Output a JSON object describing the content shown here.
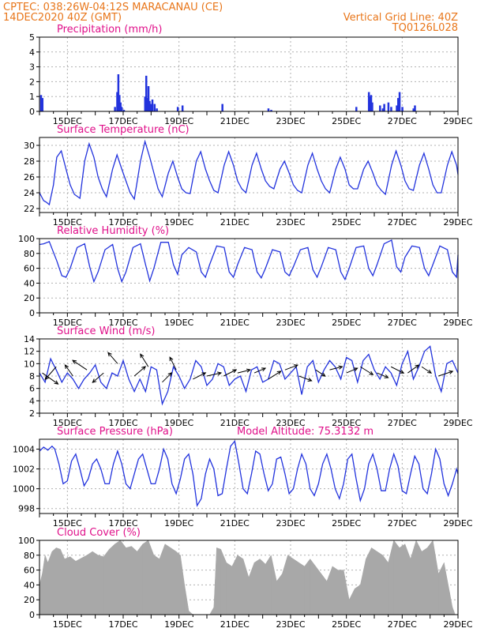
{
  "header": {
    "line1": "CPTEC:   038:26W-04:12S   MARACANAU (CE)",
    "line2": "14DEC2020 40Z (GMT)",
    "grid_note": "Vertical Grid Line: 40Z",
    "code": "TQ0126L028"
  },
  "colors": {
    "header": "#e8761a",
    "title": "#e0108a",
    "series": "#2233dd",
    "cloud": "#a8a8a8",
    "grid": "#b0b0b0"
  },
  "chart_data": [
    {
      "id": "precip",
      "type": "bar",
      "title": "Precipitation (mm/h)",
      "ylim": [
        0,
        5
      ],
      "yticks": [
        0,
        1,
        2,
        3,
        4,
        5
      ],
      "xlim": [
        14.0,
        29.0
      ],
      "x_tick_positions": [
        15,
        17,
        19,
        21,
        23,
        25,
        27,
        29
      ],
      "x_tick_labels": [
        "15DEC",
        "17DEC",
        "19DEC",
        "21DEC",
        "23DEC",
        "25DEC",
        "27DEC",
        "29DEC"
      ],
      "grid": true,
      "x": [
        14.05,
        14.1,
        16.7,
        16.78,
        16.82,
        16.86,
        16.9,
        16.94,
        17.02,
        17.78,
        17.82,
        17.86,
        17.9,
        17.94,
        17.98,
        18.04,
        18.12,
        18.2,
        18.95,
        19.12,
        20.55,
        22.2,
        22.3,
        25.35,
        25.8,
        25.85,
        25.88,
        25.92,
        26.2,
        26.3,
        26.35,
        26.5,
        26.6,
        26.8,
        26.85,
        26.9,
        27.0,
        27.4,
        27.45
      ],
      "values": [
        1.1,
        0.9,
        0.3,
        1.3,
        2.5,
        1.1,
        0.6,
        0.3,
        0.1,
        1.0,
        2.4,
        0.9,
        1.7,
        0.7,
        0.5,
        0.8,
        0.5,
        0.2,
        0.3,
        0.4,
        0.5,
        0.2,
        0.1,
        0.3,
        1.3,
        1.0,
        1.1,
        0.6,
        0.4,
        0.2,
        0.5,
        0.6,
        0.3,
        0.4,
        0.9,
        1.3,
        0.3,
        0.2,
        0.4
      ]
    },
    {
      "id": "temp",
      "type": "line",
      "title": "Surface Temperature (nC)",
      "ylim": [
        21.5,
        31
      ],
      "yticks": [
        22,
        24,
        26,
        28,
        30
      ],
      "xlim": [
        14.0,
        29.0
      ],
      "x_tick_positions": [
        15,
        17,
        19,
        21,
        23,
        25,
        27,
        29
      ],
      "x_tick_labels": [
        "15DEC",
        "17DEC",
        "19DEC",
        "21DEC",
        "23DEC",
        "25DEC",
        "27DEC",
        "29DEC"
      ],
      "grid": true,
      "x": [
        14.0,
        14.15,
        14.25,
        14.35,
        14.5,
        14.62,
        14.78,
        14.95,
        15.1,
        15.25,
        15.45,
        15.62,
        15.78,
        15.95,
        16.1,
        16.25,
        16.4,
        16.62,
        16.78,
        16.95,
        17.1,
        17.25,
        17.4,
        17.62,
        17.78,
        17.95,
        18.1,
        18.25,
        18.4,
        18.62,
        18.78,
        18.95,
        19.1,
        19.25,
        19.4,
        19.62,
        19.78,
        19.95,
        20.1,
        20.25,
        20.4,
        20.62,
        20.78,
        20.95,
        21.1,
        21.25,
        21.4,
        21.62,
        21.78,
        21.95,
        22.1,
        22.25,
        22.4,
        22.62,
        22.78,
        22.95,
        23.1,
        23.25,
        23.4,
        23.62,
        23.78,
        23.95,
        24.1,
        24.25,
        24.4,
        24.62,
        24.78,
        24.95,
        25.1,
        25.25,
        25.4,
        25.62,
        25.78,
        25.95,
        26.1,
        26.25,
        26.4,
        26.62,
        26.78,
        26.95,
        27.1,
        27.25,
        27.4,
        27.62,
        27.78,
        27.95,
        28.1,
        28.25,
        28.4,
        28.62,
        28.78,
        28.95,
        29.0
      ],
      "values": [
        24.0,
        23.0,
        22.8,
        22.5,
        25.0,
        28.5,
        29.3,
        27.0,
        25.0,
        23.8,
        23.3,
        28.0,
        30.2,
        28.5,
        26.0,
        24.5,
        23.5,
        27.0,
        28.8,
        27.0,
        25.5,
        24.0,
        23.2,
        28.0,
        30.5,
        28.5,
        26.5,
        24.5,
        23.5,
        26.5,
        28.0,
        26.0,
        24.5,
        24.0,
        23.9,
        28.0,
        29.2,
        27.0,
        25.5,
        24.3,
        24.0,
        27.5,
        29.2,
        27.5,
        25.5,
        24.5,
        24.0,
        27.5,
        29.0,
        27.0,
        25.5,
        24.8,
        24.5,
        27.0,
        28.0,
        26.5,
        25.0,
        24.3,
        24.0,
        27.5,
        29.0,
        27.0,
        25.5,
        24.5,
        24.0,
        27.0,
        28.5,
        27.0,
        25.0,
        24.5,
        24.5,
        27.0,
        28.0,
        26.5,
        25.0,
        24.3,
        23.8,
        27.5,
        29.3,
        27.5,
        25.5,
        24.5,
        24.3,
        27.5,
        29.0,
        27.0,
        25.0,
        24.0,
        24.0,
        27.5,
        29.2,
        27.5,
        26.3
      ]
    },
    {
      "id": "rh",
      "type": "line",
      "title": "Relative Humidity (%)",
      "ylim": [
        0,
        100
      ],
      "yticks": [
        0,
        20,
        40,
        60,
        80,
        100
      ],
      "xlim": [
        14.0,
        29.0
      ],
      "x_tick_positions": [
        15,
        17,
        19,
        21,
        23,
        25,
        27,
        29
      ],
      "x_tick_labels": [
        "15DEC",
        "17DEC",
        "19DEC",
        "21DEC",
        "23DEC",
        "25DEC",
        "27DEC",
        "29DEC"
      ],
      "grid": true,
      "x": [
        14.0,
        14.15,
        14.35,
        14.62,
        14.8,
        14.95,
        15.1,
        15.35,
        15.62,
        15.8,
        15.95,
        16.1,
        16.35,
        16.62,
        16.8,
        16.95,
        17.1,
        17.35,
        17.62,
        17.8,
        17.95,
        18.1,
        18.35,
        18.62,
        18.8,
        18.95,
        19.1,
        19.35,
        19.62,
        19.8,
        19.95,
        20.1,
        20.35,
        20.62,
        20.8,
        20.95,
        21.1,
        21.35,
        21.62,
        21.8,
        21.95,
        22.1,
        22.35,
        22.62,
        22.8,
        22.95,
        23.1,
        23.35,
        23.62,
        23.8,
        23.95,
        24.1,
        24.35,
        24.62,
        24.8,
        24.95,
        25.1,
        25.35,
        25.62,
        25.8,
        25.95,
        26.1,
        26.35,
        26.62,
        26.8,
        26.95,
        27.1,
        27.35,
        27.62,
        27.8,
        27.95,
        28.1,
        28.35,
        28.62,
        28.8,
        28.95,
        29.0
      ],
      "values": [
        92,
        93,
        96,
        70,
        50,
        48,
        60,
        88,
        93,
        62,
        42,
        55,
        85,
        92,
        60,
        42,
        55,
        88,
        93,
        65,
        43,
        60,
        95,
        95,
        65,
        52,
        78,
        88,
        82,
        55,
        48,
        65,
        90,
        88,
        55,
        48,
        65,
        88,
        85,
        55,
        47,
        60,
        85,
        82,
        55,
        50,
        62,
        85,
        88,
        58,
        48,
        62,
        88,
        85,
        55,
        45,
        60,
        88,
        90,
        60,
        50,
        65,
        93,
        98,
        62,
        55,
        75,
        90,
        88,
        60,
        50,
        65,
        90,
        85,
        55,
        48,
        78
      ]
    },
    {
      "id": "wind",
      "type": "line",
      "title": "Surface Wind (m/s)",
      "ylim": [
        2,
        14
      ],
      "yticks": [
        2,
        4,
        6,
        8,
        10,
        12,
        14
      ],
      "xlim": [
        14.0,
        29.0
      ],
      "x_tick_positions": [
        15,
        17,
        19,
        21,
        23,
        25,
        27,
        29
      ],
      "x_tick_labels": [
        "15DEC",
        "17DEC",
        "19DEC",
        "21DEC",
        "23DEC",
        "25DEC",
        "27DEC",
        "29DEC"
      ],
      "grid": true,
      "x": [
        14.0,
        14.2,
        14.4,
        14.6,
        14.8,
        15.0,
        15.2,
        15.4,
        15.6,
        15.8,
        16.0,
        16.2,
        16.4,
        16.6,
        16.8,
        17.0,
        17.2,
        17.4,
        17.6,
        17.8,
        18.0,
        18.2,
        18.4,
        18.6,
        18.8,
        19.0,
        19.2,
        19.4,
        19.6,
        19.8,
        20.0,
        20.2,
        20.4,
        20.6,
        20.8,
        21.0,
        21.2,
        21.4,
        21.6,
        21.8,
        22.0,
        22.2,
        22.4,
        22.6,
        22.8,
        23.0,
        23.2,
        23.4,
        23.6,
        23.8,
        24.0,
        24.2,
        24.4,
        24.6,
        24.8,
        25.0,
        25.2,
        25.4,
        25.6,
        25.8,
        26.0,
        26.2,
        26.4,
        26.6,
        26.8,
        27.0,
        27.2,
        27.4,
        27.6,
        27.8,
        28.0,
        28.2,
        28.4,
        28.6,
        28.8,
        29.0
      ],
      "values": [
        8.5,
        7.0,
        10.8,
        9.0,
        7.0,
        8.5,
        7.5,
        6.0,
        7.5,
        8.5,
        9.8,
        7.0,
        6.0,
        8.5,
        8.0,
        10.5,
        7.5,
        5.5,
        7.5,
        5.5,
        9.5,
        9.0,
        3.5,
        5.5,
        9.5,
        8.0,
        6.0,
        7.5,
        10.5,
        9.5,
        6.5,
        7.5,
        10.0,
        9.5,
        6.5,
        7.5,
        8.0,
        5.5,
        9.0,
        9.5,
        7.0,
        7.5,
        10.5,
        10.0,
        7.5,
        8.5,
        9.5,
        5.0,
        9.5,
        10.5,
        7.0,
        9.0,
        10.5,
        9.5,
        7.5,
        11.0,
        10.5,
        7.0,
        10.5,
        11.5,
        9.0,
        7.5,
        9.5,
        8.5,
        6.5,
        10.0,
        12.0,
        7.5,
        9.5,
        12.0,
        12.8,
        8.0,
        5.5,
        10.0,
        10.5,
        8.5
      ],
      "vector_x": [
        14.1,
        14.6,
        15.2,
        15.7,
        16.3,
        16.8,
        17.4,
        17.9,
        18.4,
        18.9,
        19.5,
        20.0,
        20.6,
        21.1,
        21.7,
        22.2,
        22.8,
        23.3,
        23.9,
        24.4,
        25.0,
        25.5,
        26.1,
        26.6,
        27.2,
        27.7,
        28.3
      ],
      "vector_y": [
        8.5,
        9.5,
        8.0,
        9.0,
        8.5,
        10.0,
        8.0,
        9.5,
        7.0,
        9.0,
        7.5,
        8.0,
        8.0,
        8.5,
        8.5,
        7.5,
        9.0,
        8.0,
        9.0,
        9.0,
        8.5,
        9.5,
        8.5,
        9.5,
        8.5,
        9.5,
        8.0
      ],
      "vector_dx": [
        1.0,
        -0.7,
        -0.5,
        -0.9,
        -0.7,
        -0.6,
        0.7,
        -0.5,
        0.6,
        -0.4,
        0.8,
        0.9,
        0.8,
        0.8,
        0.7,
        0.8,
        0.8,
        0.8,
        0.6,
        0.8,
        0.7,
        0.8,
        0.7,
        0.8,
        0.7,
        0.6,
        0.9
      ],
      "vector_dy": [
        -0.7,
        -0.8,
        0.7,
        0.6,
        -0.6,
        0.7,
        0.6,
        0.8,
        0.6,
        0.8,
        0.4,
        0.2,
        0.4,
        0.2,
        0.3,
        0.5,
        0.3,
        -0.3,
        -0.4,
        0.2,
        0.3,
        -0.5,
        -0.3,
        -0.4,
        0.5,
        -0.4,
        0.3
      ]
    },
    {
      "id": "pressure",
      "type": "line",
      "title": "Surface Pressure (hPa)",
      "annotation": "Model Altitude: 75.3132 m",
      "ylim": [
        997.5,
        1005
      ],
      "yticks": [
        998,
        1000,
        1002,
        1004
      ],
      "xlim": [
        14.0,
        29.0
      ],
      "x_tick_positions": [
        15,
        17,
        19,
        21,
        23,
        25,
        27,
        29
      ],
      "x_tick_labels": [
        "15DEC",
        "17DEC",
        "19DEC",
        "21DEC",
        "23DEC",
        "25DEC",
        "27DEC",
        "29DEC"
      ],
      "grid": true,
      "x": [
        14.0,
        14.15,
        14.3,
        14.45,
        14.55,
        14.7,
        14.85,
        15.0,
        15.15,
        15.3,
        15.45,
        15.6,
        15.75,
        15.9,
        16.05,
        16.2,
        16.35,
        16.5,
        16.65,
        16.8,
        16.95,
        17.1,
        17.25,
        17.4,
        17.55,
        17.7,
        17.85,
        18.0,
        18.15,
        18.3,
        18.45,
        18.6,
        18.75,
        18.9,
        19.05,
        19.2,
        19.35,
        19.5,
        19.65,
        19.8,
        19.95,
        20.1,
        20.25,
        20.4,
        20.55,
        20.7,
        20.85,
        21.0,
        21.15,
        21.3,
        21.45,
        21.6,
        21.75,
        21.9,
        22.05,
        22.2,
        22.35,
        22.5,
        22.65,
        22.8,
        22.95,
        23.1,
        23.25,
        23.4,
        23.55,
        23.7,
        23.85,
        24.0,
        24.15,
        24.3,
        24.45,
        24.6,
        24.75,
        24.9,
        25.05,
        25.2,
        25.35,
        25.5,
        25.65,
        25.8,
        25.95,
        26.1,
        26.25,
        26.4,
        26.55,
        26.7,
        26.85,
        27.0,
        27.15,
        27.3,
        27.45,
        27.6,
        27.75,
        27.9,
        28.05,
        28.2,
        28.35,
        28.5,
        28.65,
        28.8,
        28.95,
        29.0
      ],
      "values": [
        1003.8,
        1004.2,
        1003.9,
        1004.3,
        1004.0,
        1002.5,
        1000.5,
        1000.8,
        1002.8,
        1003.5,
        1002.0,
        1000.3,
        1001.0,
        1002.5,
        1003.0,
        1002.0,
        1000.5,
        1000.5,
        1002.5,
        1003.8,
        1002.5,
        1000.5,
        1000.0,
        1001.5,
        1003.0,
        1003.5,
        1002.0,
        1000.5,
        1000.5,
        1002.0,
        1004.0,
        1003.0,
        1000.5,
        999.5,
        1001.0,
        1003.0,
        1003.5,
        1001.5,
        998.3,
        999.0,
        1001.5,
        1003.0,
        1002.0,
        999.3,
        999.5,
        1002.0,
        1004.3,
        1004.8,
        1002.5,
        1000.0,
        999.5,
        1001.5,
        1003.8,
        1003.5,
        1001.5,
        999.8,
        1000.5,
        1003.0,
        1003.2,
        1001.5,
        999.5,
        1000.0,
        1002.0,
        1003.5,
        1002.5,
        1000.0,
        999.3,
        1000.5,
        1002.5,
        1003.5,
        1002.0,
        1000.0,
        999.0,
        1000.5,
        1003.0,
        1003.5,
        1001.0,
        998.8,
        1000.0,
        1002.5,
        1003.5,
        1002.0,
        999.8,
        999.8,
        1002.0,
        1003.5,
        1002.3,
        999.8,
        999.5,
        1001.5,
        1003.3,
        1002.5,
        1000.0,
        999.5,
        1001.5,
        1004.0,
        1003.0,
        1000.5,
        999.3,
        1000.5,
        1002.0,
        1001.5
      ]
    },
    {
      "id": "cloud",
      "type": "area",
      "title": "Cloud Cover (%)",
      "ylim": [
        0,
        100
      ],
      "yticks": [
        0,
        20,
        40,
        60,
        80,
        100
      ],
      "xlim": [
        14.0,
        29.0
      ],
      "x_tick_positions": [
        15,
        17,
        19,
        21,
        23,
        25,
        27,
        29
      ],
      "x_tick_labels": [
        "15DEC",
        "17DEC",
        "19DEC",
        "21DEC",
        "23DEC",
        "25DEC",
        "27DEC",
        "29DEC"
      ],
      "grid": true,
      "x": [
        14.0,
        14.1,
        14.2,
        14.3,
        14.45,
        14.6,
        14.75,
        14.9,
        15.1,
        15.3,
        15.5,
        15.7,
        15.9,
        16.1,
        16.3,
        16.5,
        16.7,
        16.9,
        17.1,
        17.3,
        17.5,
        17.7,
        17.9,
        18.1,
        18.3,
        18.5,
        18.7,
        18.9,
        19.05,
        19.2,
        19.35,
        19.5,
        19.7,
        19.9,
        20.1,
        20.25,
        20.35,
        20.5,
        20.7,
        20.9,
        21.1,
        21.3,
        21.5,
        21.7,
        21.9,
        22.1,
        22.3,
        22.5,
        22.7,
        22.9,
        23.1,
        23.3,
        23.5,
        23.7,
        23.9,
        24.1,
        24.3,
        24.5,
        24.7,
        24.9,
        25.1,
        25.3,
        25.5,
        25.7,
        25.9,
        26.1,
        26.3,
        26.5,
        26.7,
        26.9,
        27.1,
        27.3,
        27.5,
        27.7,
        27.9,
        28.1,
        28.3,
        28.5,
        28.7,
        28.8,
        28.9,
        29.0
      ],
      "values": [
        40,
        55,
        80,
        70,
        85,
        90,
        88,
        75,
        78,
        72,
        76,
        80,
        85,
        80,
        78,
        88,
        95,
        100,
        90,
        92,
        85,
        95,
        100,
        80,
        75,
        95,
        90,
        85,
        80,
        40,
        5,
        0,
        0,
        0,
        0,
        10,
        90,
        88,
        70,
        65,
        80,
        75,
        50,
        70,
        75,
        68,
        80,
        45,
        55,
        80,
        75,
        70,
        65,
        75,
        65,
        55,
        45,
        65,
        60,
        60,
        20,
        35,
        40,
        75,
        90,
        85,
        80,
        70,
        100,
        90,
        95,
        75,
        100,
        85,
        90,
        100,
        55,
        70,
        30,
        10,
        0,
        0
      ]
    }
  ]
}
